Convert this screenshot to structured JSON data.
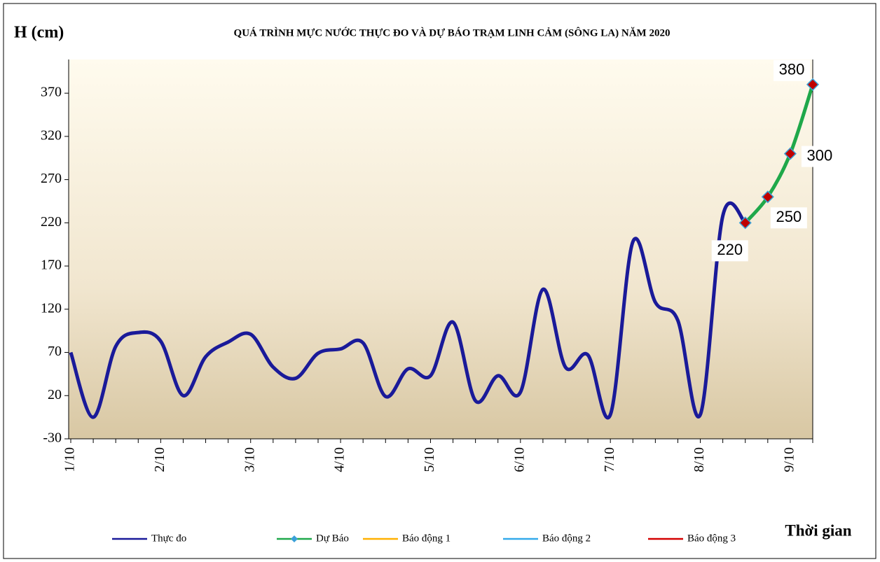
{
  "chart_data": {
    "type": "line",
    "title": "QUÁ TRÌNH   MỰC NƯỚC THỰC ĐO VÀ DỰ BÁO  TRẠM  LINH  CẢM (SÔNG LA) NĂM 2020",
    "y_label": "H (cm)",
    "x_label": "Thời gian",
    "categories": [
      "1/10",
      null,
      null,
      null,
      "2/10",
      null,
      null,
      null,
      "3/10",
      null,
      null,
      null,
      "4/10",
      null,
      null,
      null,
      "5/10",
      null,
      null,
      null,
      "6/10",
      null,
      null,
      null,
      "7/10",
      null,
      null,
      null,
      "8/10",
      null,
      null,
      null,
      "9/10",
      null
    ],
    "series": [
      {
        "name": "Thực đo",
        "color": "#1a1a99",
        "values": [
          70,
          -5,
          77,
          93,
          83,
          20,
          65,
          82,
          91,
          53,
          40,
          69,
          74,
          81,
          19,
          51,
          43,
          105,
          14,
          43,
          24,
          143,
          53,
          67,
          -2,
          198,
          128,
          107,
          -2,
          228,
          220,
          null,
          null,
          null
        ]
      },
      {
        "name": "Dự Báo",
        "color": "#1fa84a",
        "marker_color": "#c00000",
        "values": [
          null,
          null,
          null,
          null,
          null,
          null,
          null,
          null,
          null,
          null,
          null,
          null,
          null,
          null,
          null,
          null,
          null,
          null,
          null,
          null,
          null,
          null,
          null,
          null,
          null,
          null,
          null,
          null,
          null,
          null,
          220,
          250,
          300,
          380
        ]
      },
      {
        "name": "Báo động 1",
        "color": "#ffb000",
        "values": [
          null,
          null,
          null,
          null,
          null,
          null,
          null,
          null,
          null,
          null,
          null,
          null,
          null,
          null,
          null,
          null,
          null,
          null,
          null,
          null,
          null,
          null,
          null,
          null,
          null,
          null,
          null,
          null,
          null,
          null,
          null,
          null,
          null,
          null
        ]
      },
      {
        "name": "Báo động 2",
        "color": "#33a9ea",
        "values": [
          null,
          null,
          null,
          null,
          null,
          null,
          null,
          null,
          null,
          null,
          null,
          null,
          null,
          null,
          null,
          null,
          null,
          null,
          null,
          null,
          null,
          null,
          null,
          null,
          null,
          null,
          null,
          null,
          null,
          null,
          null,
          null,
          null,
          null
        ]
      },
      {
        "name": "Báo động 3",
        "color": "#d40000",
        "values": [
          null,
          null,
          null,
          null,
          null,
          null,
          null,
          null,
          null,
          null,
          null,
          null,
          null,
          null,
          null,
          null,
          null,
          null,
          null,
          null,
          null,
          null,
          null,
          null,
          null,
          null,
          null,
          null,
          null,
          null,
          null,
          null,
          null,
          null
        ]
      }
    ],
    "ylim": [
      -30,
      409
    ],
    "yticks": [
      -30,
      20,
      70,
      120,
      170,
      220,
      270,
      320,
      370
    ]
  }
}
